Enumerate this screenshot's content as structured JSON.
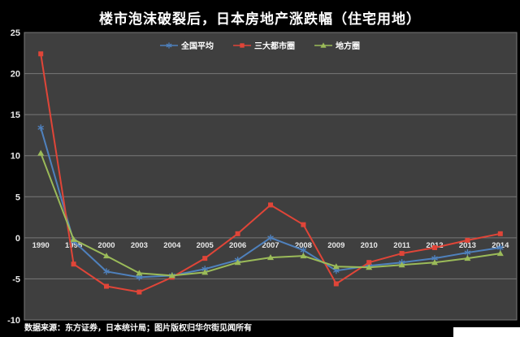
{
  "title": "楼市泡沫破裂后，日本房地产涨跌幅（住宅用地）",
  "footer": {
    "source": "数据来源：东方证券，日本统计局；图片版权归华尔街见闻所有"
  },
  "colors": {
    "background": "#000000",
    "plot_bg": "#3f3f3f",
    "grid": "#787878",
    "axis_text": "#e8e8e8",
    "title_text": "#ffffff"
  },
  "chart_data": {
    "type": "line",
    "title": "楼市泡沫破裂后，日本房地产涨跌幅（住宅用地）",
    "categories": [
      "1990",
      "1995",
      "2000",
      "2003",
      "2004",
      "2005",
      "2006",
      "2007",
      "2008",
      "2009",
      "2010",
      "2011",
      "2012",
      "2013",
      "2014"
    ],
    "series": [
      {
        "name": "全国平均",
        "color": "#4F81BD",
        "marker": "star",
        "values": [
          13.4,
          -0.4,
          -4.1,
          -4.8,
          -4.6,
          -3.8,
          -2.7,
          0.0,
          -1.5,
          -4.0,
          -3.4,
          -3.0,
          -2.5,
          -1.8,
          -1.2
        ]
      },
      {
        "name": "三大都市圈",
        "color": "#E04538",
        "marker": "square",
        "values": [
          22.4,
          -3.2,
          -5.9,
          -6.6,
          -4.8,
          -2.5,
          0.5,
          4.0,
          1.6,
          -5.6,
          -3.0,
          -1.9,
          -1.2,
          -0.3,
          0.5
        ]
      },
      {
        "name": "地方圈",
        "color": "#9BBB59",
        "marker": "triangle",
        "values": [
          10.3,
          -0.2,
          -2.2,
          -4.3,
          -4.6,
          -4.2,
          -3.0,
          -2.4,
          -2.2,
          -3.5,
          -3.6,
          -3.3,
          -3.0,
          -2.5,
          -1.9
        ]
      }
    ],
    "xlabel": "",
    "ylabel": "",
    "ylim": [
      -10,
      25
    ],
    "ytick_step": 5,
    "yticks": [
      -10,
      -5,
      0,
      5,
      10,
      15,
      20,
      25
    ],
    "grid": true,
    "legend_position": "top",
    "x_labels_position": "next-to-zero-axis"
  }
}
